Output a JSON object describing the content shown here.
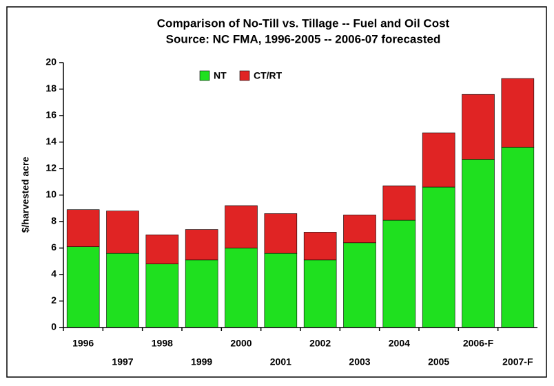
{
  "chart_data": {
    "type": "stacked_bar",
    "title": "Comparison of No-Till vs. Tillage -- Fuel and Oil Cost",
    "subtitle": "Source:  NC FMA, 1996-2005 -- 2006-07 forecasted",
    "y_label": "$/harvested acre",
    "categories": [
      "1996",
      "1997",
      "1998",
      "1999",
      "2000",
      "2001",
      "2002",
      "2003",
      "2004",
      "2005",
      "2006-F",
      "2007-F"
    ],
    "series": [
      {
        "name": "NT",
        "color": "#1fe01f",
        "values": [
          6.1,
          5.6,
          4.8,
          5.1,
          6.0,
          5.6,
          5.1,
          6.4,
          8.1,
          10.6,
          12.7,
          13.6
        ]
      },
      {
        "name": "CT/RT",
        "color": "#e02424",
        "values": [
          2.8,
          3.2,
          2.2,
          2.3,
          3.2,
          3.0,
          2.1,
          2.1,
          2.6,
          4.1,
          4.9,
          5.2
        ]
      }
    ],
    "ylim": [
      0,
      20
    ],
    "yticks": [
      0,
      2,
      4,
      6,
      8,
      10,
      12,
      14,
      16,
      18,
      20
    ],
    "legend": "top"
  }
}
